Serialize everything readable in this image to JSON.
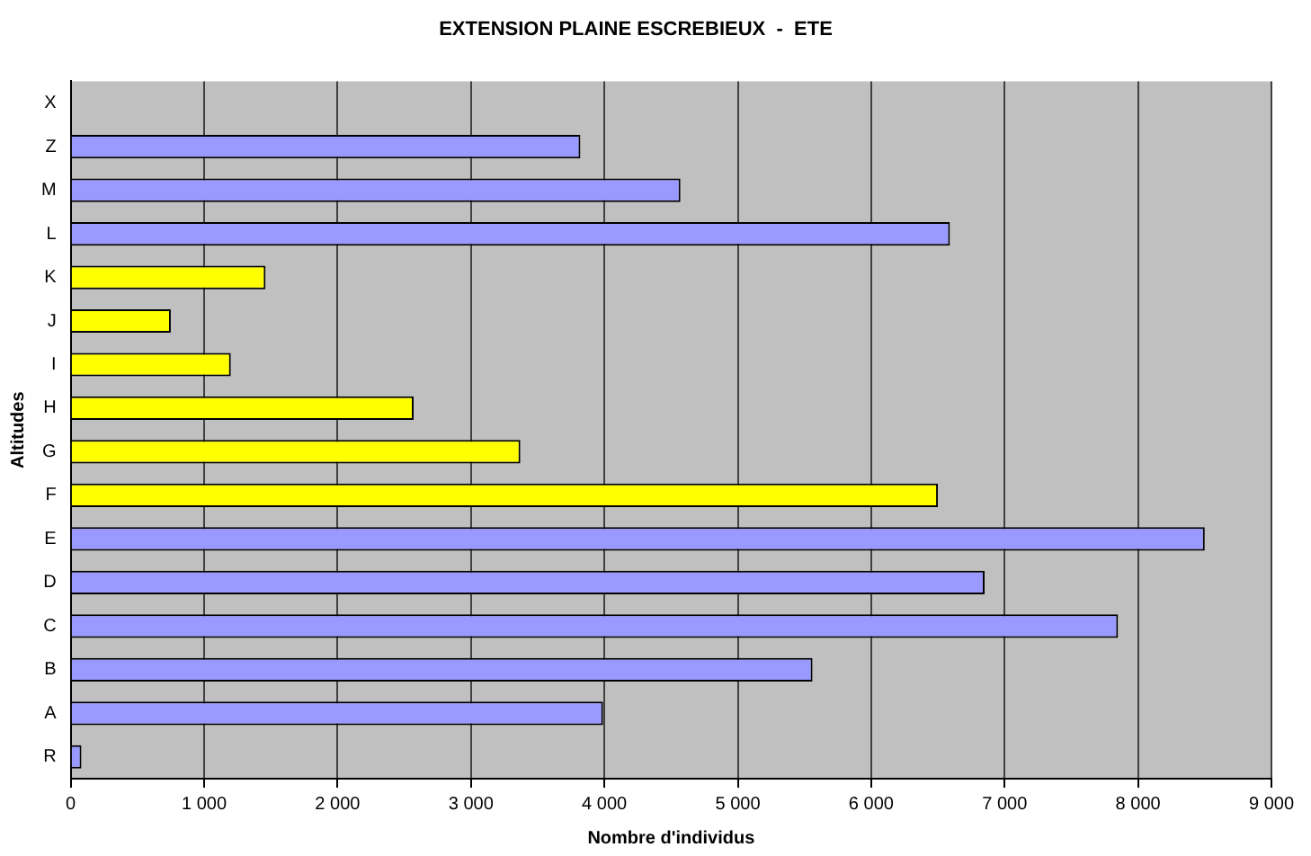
{
  "chart_data": {
    "type": "bar",
    "orientation": "horizontal",
    "title": "EXTENSION PLAINE ESCREBIEUX  -  ETE",
    "xlabel": "Nombre d'individus",
    "ylabel": "Altitudes",
    "categories": [
      "X",
      "Z",
      "M",
      "L",
      "K",
      "J",
      "I",
      "H",
      "G",
      "F",
      "E",
      "D",
      "C",
      "B",
      "A",
      "R"
    ],
    "values": [
      null,
      3820,
      4570,
      6590,
      1460,
      750,
      1200,
      2570,
      3370,
      6500,
      8500,
      6850,
      7850,
      5560,
      3990,
      80
    ],
    "colors": [
      "#9999ff",
      "#9999ff",
      "#9999ff",
      "#9999ff",
      "#ffff00",
      "#ffff00",
      "#ffff00",
      "#ffff00",
      "#ffff00",
      "#ffff00",
      "#9999ff",
      "#9999ff",
      "#9999ff",
      "#9999ff",
      "#9999ff",
      "#9999ff"
    ],
    "xlim": [
      0,
      9000
    ],
    "xticks": [
      0,
      {
        "value": 1000,
        "label": "1 000"
      },
      {
        "value": 2000,
        "label": "2 000"
      },
      {
        "value": 3000,
        "label": "3 000"
      },
      {
        "value": 4000,
        "label": "4 000"
      },
      {
        "value": 5000,
        "label": "5 000"
      },
      {
        "value": 6000,
        "label": "6 000"
      },
      {
        "value": 7000,
        "label": "7 000"
      },
      {
        "value": 8000,
        "label": "8 000"
      },
      {
        "value": 9000,
        "label": "9 000"
      }
    ],
    "grid": "x",
    "legend": false
  }
}
